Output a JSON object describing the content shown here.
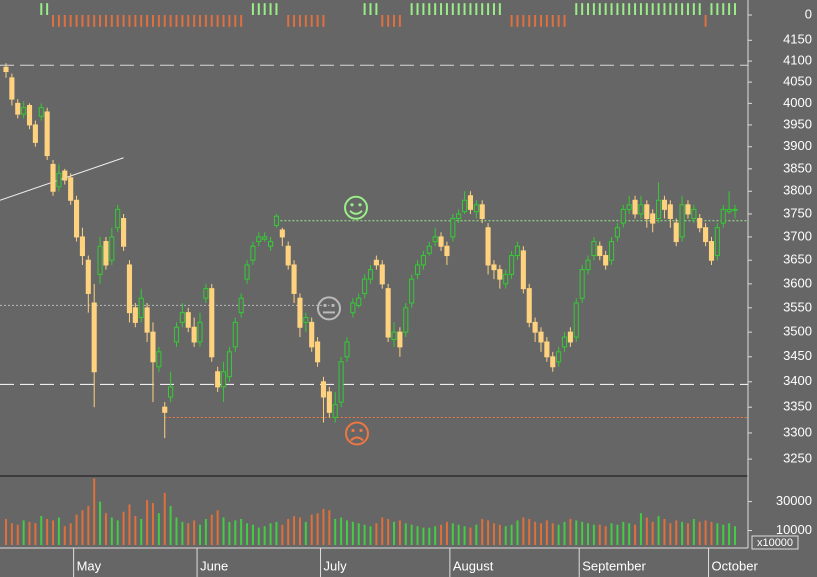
{
  "chart_data": {
    "type": "candlestick",
    "log_scale": true,
    "xticks": [
      {
        "value": 12,
        "label": "May"
      },
      {
        "value": 33,
        "label": "June"
      },
      {
        "value": 54,
        "label": "July"
      },
      {
        "value": 76,
        "label": "August"
      },
      {
        "value": 98,
        "label": "September"
      },
      {
        "value": 120,
        "label": "October"
      }
    ],
    "ylim": [
      3220,
      4175
    ],
    "yticks": [
      3250,
      3300,
      3350,
      3400,
      3450,
      3500,
      3550,
      3600,
      3650,
      3700,
      3750,
      3800,
      3850,
      3900,
      3950,
      4000,
      4050,
      4100,
      4150
    ],
    "up_color": "#33cc33",
    "down_color": "#ffd27f",
    "candles": [
      [
        4085,
        4095,
        4060,
        4075
      ],
      [
        4060,
        4070,
        3995,
        4010
      ],
      [
        4000,
        4010,
        3965,
        3975
      ],
      [
        3975,
        4005,
        3965,
        3990
      ],
      [
        3995,
        4000,
        3940,
        3950
      ],
      [
        3950,
        3960,
        3900,
        3910
      ],
      [
        3970,
        4000,
        3960,
        3990
      ],
      [
        3980,
        3990,
        3870,
        3880
      ],
      [
        3860,
        3870,
        3790,
        3800
      ],
      [
        3810,
        3860,
        3800,
        3840
      ],
      [
        3845,
        3850,
        3815,
        3825
      ],
      [
        3830,
        3840,
        3770,
        3780
      ],
      [
        3780,
        3790,
        3690,
        3700
      ],
      [
        3700,
        3720,
        3640,
        3660
      ],
      [
        3650,
        3660,
        3540,
        3580
      ],
      [
        3560,
        3600,
        3350,
        3420
      ],
      [
        3620,
        3700,
        3600,
        3680
      ],
      [
        3690,
        3700,
        3630,
        3640
      ],
      [
        3650,
        3720,
        3640,
        3700
      ],
      [
        3720,
        3770,
        3710,
        3760
      ],
      [
        3740,
        3750,
        3670,
        3680
      ],
      [
        3640,
        3650,
        3520,
        3540
      ],
      [
        3550,
        3560,
        3510,
        3520
      ],
      [
        3530,
        3590,
        3520,
        3570
      ],
      [
        3550,
        3560,
        3480,
        3500
      ],
      [
        3500,
        3520,
        3360,
        3440
      ],
      [
        3430,
        3470,
        3420,
        3460
      ],
      [
        3350,
        3360,
        3290,
        3340
      ],
      [
        3370,
        3420,
        3360,
        3390
      ],
      [
        3480,
        3520,
        3470,
        3510
      ],
      [
        3520,
        3560,
        3510,
        3540
      ],
      [
        3540,
        3550,
        3500,
        3510
      ],
      [
        3510,
        3530,
        3470,
        3480
      ],
      [
        3480,
        3540,
        3470,
        3520
      ],
      [
        3570,
        3600,
        3560,
        3590
      ],
      [
        3590,
        3600,
        3440,
        3450
      ],
      [
        3420,
        3430,
        3380,
        3390
      ],
      [
        3390,
        3440,
        3360,
        3420
      ],
      [
        3410,
        3470,
        3400,
        3460
      ],
      [
        3470,
        3530,
        3460,
        3520
      ],
      [
        3540,
        3580,
        3530,
        3570
      ],
      [
        3610,
        3650,
        3600,
        3640
      ],
      [
        3650,
        3690,
        3640,
        3680
      ],
      [
        3690,
        3710,
        3680,
        3700
      ],
      [
        3695,
        3710,
        3690,
        3700
      ],
      [
        3680,
        3700,
        3670,
        3690
      ],
      [
        3725,
        3750,
        3720,
        3745
      ],
      [
        3715,
        3720,
        3680,
        3700
      ],
      [
        3680,
        3690,
        3630,
        3640
      ],
      [
        3640,
        3650,
        3560,
        3580
      ],
      [
        3570,
        3580,
        3490,
        3510
      ],
      [
        3520,
        3540,
        3500,
        3530
      ],
      [
        3520,
        3530,
        3460,
        3470
      ],
      [
        3480,
        3490,
        3430,
        3440
      ],
      [
        3400,
        3410,
        3320,
        3370
      ],
      [
        3380,
        3390,
        3330,
        3340
      ],
      [
        3330,
        3380,
        3320,
        3355
      ],
      [
        3360,
        3450,
        3350,
        3440
      ],
      [
        3450,
        3490,
        3440,
        3480
      ],
      [
        3540,
        3570,
        3530,
        3560
      ],
      [
        3555,
        3580,
        3550,
        3570
      ],
      [
        3580,
        3620,
        3570,
        3610
      ],
      [
        3610,
        3640,
        3600,
        3630
      ],
      [
        3650,
        3660,
        3630,
        3640
      ],
      [
        3640,
        3650,
        3590,
        3600
      ],
      [
        3590,
        3600,
        3480,
        3490
      ],
      [
        3485,
        3520,
        3470,
        3500
      ],
      [
        3500,
        3510,
        3450,
        3470
      ],
      [
        3500,
        3560,
        3490,
        3550
      ],
      [
        3560,
        3620,
        3550,
        3610
      ],
      [
        3620,
        3650,
        3610,
        3640
      ],
      [
        3640,
        3670,
        3630,
        3660
      ],
      [
        3665,
        3690,
        3660,
        3680
      ],
      [
        3690,
        3720,
        3680,
        3700
      ],
      [
        3700,
        3710,
        3670,
        3680
      ],
      [
        3680,
        3690,
        3640,
        3660
      ],
      [
        3700,
        3750,
        3690,
        3740
      ],
      [
        3740,
        3760,
        3730,
        3750
      ],
      [
        3755,
        3800,
        3750,
        3780
      ],
      [
        3790,
        3800,
        3750,
        3760
      ],
      [
        3755,
        3780,
        3740,
        3770
      ],
      [
        3770,
        3780,
        3730,
        3740
      ],
      [
        3720,
        3730,
        3620,
        3640
      ],
      [
        3640,
        3650,
        3610,
        3630
      ],
      [
        3630,
        3640,
        3590,
        3610
      ],
      [
        3600,
        3630,
        3590,
        3620
      ],
      [
        3620,
        3670,
        3610,
        3660
      ],
      [
        3660,
        3690,
        3650,
        3680
      ],
      [
        3670,
        3680,
        3580,
        3590
      ],
      [
        3590,
        3600,
        3510,
        3520
      ],
      [
        3520,
        3530,
        3480,
        3500
      ],
      [
        3500,
        3510,
        3460,
        3480
      ],
      [
        3480,
        3490,
        3440,
        3450
      ],
      [
        3450,
        3460,
        3420,
        3430
      ],
      [
        3440,
        3470,
        3430,
        3460
      ],
      [
        3470,
        3500,
        3460,
        3490
      ],
      [
        3500,
        3510,
        3470,
        3480
      ],
      [
        3490,
        3570,
        3480,
        3560
      ],
      [
        3570,
        3640,
        3560,
        3630
      ],
      [
        3630,
        3660,
        3620,
        3650
      ],
      [
        3660,
        3700,
        3650,
        3690
      ],
      [
        3680,
        3690,
        3650,
        3660
      ],
      [
        3660,
        3670,
        3630,
        3640
      ],
      [
        3650,
        3700,
        3640,
        3690
      ],
      [
        3700,
        3730,
        3690,
        3720
      ],
      [
        3730,
        3770,
        3720,
        3760
      ],
      [
        3760,
        3790,
        3750,
        3770
      ],
      [
        3780,
        3790,
        3740,
        3750
      ],
      [
        3750,
        3790,
        3740,
        3770
      ],
      [
        3770,
        3780,
        3720,
        3740
      ],
      [
        3750,
        3760,
        3710,
        3730
      ],
      [
        3740,
        3820,
        3730,
        3780
      ],
      [
        3780,
        3790,
        3740,
        3760
      ],
      [
        3770,
        3780,
        3720,
        3740
      ],
      [
        3730,
        3740,
        3680,
        3690
      ],
      [
        3700,
        3790,
        3690,
        3770
      ],
      [
        3770,
        3780,
        3740,
        3750
      ],
      [
        3740,
        3770,
        3730,
        3760
      ],
      [
        3740,
        3750,
        3710,
        3720
      ],
      [
        3720,
        3730,
        3680,
        3690
      ],
      [
        3690,
        3700,
        3640,
        3650
      ],
      [
        3660,
        3730,
        3650,
        3720
      ],
      [
        3730,
        3770,
        3720,
        3760
      ],
      [
        3755,
        3800,
        3750,
        3760
      ],
      [
        3760,
        3770,
        3740,
        3760
      ]
    ],
    "levels": [
      {
        "value": 4090,
        "color": "#d8d8d8",
        "style": "dashed",
        "from": 0
      },
      {
        "value": 3395,
        "color": "#ffffff",
        "style": "dashed",
        "from": 0
      },
      {
        "value": 3555,
        "color": "#bbbbbb",
        "style": "dotted",
        "from": 0,
        "to": 55,
        "icon": "neutral"
      },
      {
        "value": 3735,
        "color": "#99ee88",
        "style": "dotted",
        "from": 46,
        "icon": "smile"
      },
      {
        "value": 3330,
        "color": "#ee7744",
        "style": "dotted",
        "from": 27,
        "icon": "frown"
      }
    ],
    "trendline": [
      [
        0,
        3780
      ],
      [
        20,
        3875
      ]
    ],
    "volume": [
      18000,
      15000,
      14000,
      17000,
      16000,
      15000,
      20000,
      18000,
      17000,
      19000,
      13000,
      15000,
      21000,
      24000,
      27000,
      46000,
      30000,
      22000,
      19000,
      17000,
      23000,
      28000,
      20000,
      18000,
      31000,
      29000,
      22000,
      36000,
      27000,
      19000,
      16000,
      15000,
      17000,
      14000,
      18000,
      21000,
      24000,
      19000,
      16000,
      17000,
      18000,
      15000,
      14000,
      12000,
      13000,
      15000,
      16000,
      14000,
      18000,
      20000,
      19000,
      16000,
      21000,
      22000,
      25000,
      24000,
      18000,
      19000,
      17000,
      16000,
      15000,
      14000,
      13000,
      15000,
      19000,
      18000,
      16000,
      17000,
      15000,
      14000,
      13000,
      12000,
      12000,
      13000,
      14000,
      16000,
      15000,
      14000,
      13000,
      12000,
      14000,
      18000,
      17000,
      15000,
      14000,
      13000,
      14000,
      17000,
      19000,
      18000,
      16000,
      15000,
      17000,
      15000,
      14000,
      16000,
      18000,
      17000,
      16000,
      15000,
      14000,
      14000,
      13000,
      15000,
      14000,
      16000,
      15000,
      14000,
      22000,
      19000,
      16000,
      20000,
      18000,
      15000,
      17000,
      16000,
      15000,
      18000,
      16000,
      17000,
      16000,
      15000,
      14000,
      15000,
      13000
    ],
    "volume_ylim": [
      0,
      47000
    ],
    "volume_yticks": [
      10000,
      30000
    ],
    "volume_unit": "x10000",
    "volume_up_color": "#44cc44",
    "volume_down_color": "#e0703a",
    "signal": [
      0,
      0,
      0,
      0,
      0,
      0,
      1,
      1,
      -1,
      -1,
      -1,
      -1,
      -1,
      -1,
      -1,
      -1,
      -1,
      -1,
      -1,
      -1,
      -1,
      -1,
      -1,
      -1,
      -1,
      -1,
      -1,
      -1,
      -1,
      -1,
      -1,
      -1,
      -1,
      -1,
      -1,
      -1,
      -1,
      -1,
      -1,
      -1,
      -1,
      0,
      1,
      1,
      1,
      1,
      1,
      0,
      -1,
      -1,
      -1,
      -1,
      -1,
      -1,
      -1,
      0,
      0,
      0,
      0,
      0,
      0,
      1,
      1,
      1,
      -1,
      -1,
      -1,
      -1,
      0,
      1,
      1,
      1,
      1,
      1,
      1,
      1,
      1,
      1,
      1,
      1,
      1,
      1,
      1,
      1,
      1,
      0,
      -1,
      -1,
      -1,
      -1,
      -1,
      -1,
      -1,
      -1,
      -1,
      -1,
      0,
      1,
      1,
      1,
      1,
      1,
      1,
      1,
      1,
      1,
      1,
      1,
      1,
      1,
      1,
      1,
      1,
      1,
      1,
      1,
      1,
      1,
      1,
      -1,
      1,
      1,
      1,
      1,
      1
    ],
    "signal_ylim": [
      -1.1,
      1.1
    ],
    "signal_yticks": [
      0
    ],
    "signal_up_color": "#99ee88",
    "signal_down_color": "#e07040"
  }
}
